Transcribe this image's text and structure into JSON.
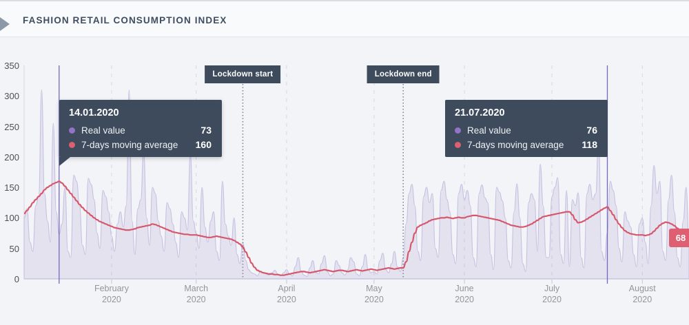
{
  "header": {
    "title": "FASHION RETAIL CONSUMPTION INDEX"
  },
  "tooltips": [
    {
      "date": "14.01.2020",
      "day": 12,
      "rows": [
        {
          "label": "Real value",
          "value": "73",
          "dot_color": "#9173c8"
        },
        {
          "label": "7-days moving average",
          "value": "160",
          "dot_color": "#dd5f72"
        }
      ]
    },
    {
      "date": "21.07.2020",
      "day": 200,
      "rows": [
        {
          "label": "Real value",
          "value": "76",
          "dot_color": "#9173c8"
        },
        {
          "label": "7-days moving average",
          "value": "118",
          "dot_color": "#dd5f72"
        }
      ]
    }
  ],
  "badge": {
    "value": "68"
  },
  "colors": {
    "marker_line": "#7366c2",
    "lockdown_line": "#7b8591",
    "grid_dashed": "#d6d6df",
    "axis": "#d4d4dd",
    "tooltip_bg": "#3e4b5c",
    "badge_bg": "#de5f72"
  },
  "chart_data": {
    "type": "line",
    "title": "Fashion Retail Consumption Index",
    "x_unit": "daily, day 0 = 02.01.2020",
    "ylim": [
      0,
      350
    ],
    "y_ticks": [
      0,
      50,
      100,
      150,
      200,
      250,
      300,
      350
    ],
    "grid": "vertical-dashed-at-month-starts",
    "legend_position": "in-tooltips",
    "months": [
      {
        "name": "February",
        "year": "2020",
        "day": 30
      },
      {
        "name": "March",
        "year": "2020",
        "day": 59
      },
      {
        "name": "April",
        "year": "2020",
        "day": 90
      },
      {
        "name": "May",
        "year": "2020",
        "day": 120
      },
      {
        "name": "June",
        "year": "2020",
        "day": 151
      },
      {
        "name": "July",
        "year": "2020",
        "day": 181
      },
      {
        "name": "August",
        "year": "2020",
        "day": 212
      }
    ],
    "annotations": [
      {
        "label": "Lockdown start",
        "day": 75
      },
      {
        "label": "Lockdown end",
        "day": 130
      }
    ],
    "series": [
      {
        "name": "Real value",
        "type": "area",
        "stroke": "#c7c0e2",
        "fill": "rgba(150,135,200,0.16)",
        "values": [
          100,
          115,
          60,
          45,
          120,
          135,
          310,
          140,
          95,
          60,
          255,
          110,
          73,
          90,
          150,
          45,
          35,
          170,
          160,
          120,
          55,
          40,
          165,
          155,
          130,
          75,
          50,
          145,
          135,
          110,
          70,
          45,
          90,
          110,
          85,
          120,
          310,
          95,
          40,
          115,
          130,
          210,
          100,
          55,
          150,
          140,
          95,
          70,
          45,
          125,
          115,
          90,
          60,
          35,
          110,
          100,
          80,
          205,
          95,
          75,
          50,
          150,
          85,
          60,
          95,
          110,
          45,
          30,
          160,
          90,
          70,
          55,
          100,
          40,
          25,
          60,
          30,
          15,
          10,
          8,
          5,
          12,
          10,
          8,
          6,
          10,
          14,
          8,
          5,
          10,
          15,
          8,
          5,
          20,
          35,
          12,
          6,
          4,
          18,
          30,
          10,
          8,
          25,
          38,
          12,
          5,
          8,
          30,
          22,
          10,
          6,
          15,
          35,
          28,
          8,
          5,
          20,
          40,
          15,
          10,
          12,
          8,
          30,
          42,
          15,
          10,
          25,
          45,
          20,
          12,
          35,
          90,
          140,
          155,
          120,
          45,
          30,
          135,
          150,
          125,
          140,
          50,
          35,
          145,
          160,
          130,
          110,
          40,
          25,
          140,
          155,
          130,
          145,
          120,
          35,
          20,
          140,
          154,
          133,
          125,
          40,
          15,
          150,
          142,
          128,
          100,
          30,
          18,
          110,
          156,
          100,
          25,
          12,
          125,
          140,
          130,
          45,
          188,
          120,
          35,
          35,
          135,
          150,
          166,
          40,
          25,
          145,
          20,
          130,
          120,
          141,
          35,
          18,
          140,
          155,
          130,
          140,
          230,
          45,
          30,
          76,
          160,
          145,
          120,
          50,
          28,
          110,
          95,
          85,
          40,
          20,
          90,
          100,
          60,
          25,
          120,
          186,
          140,
          160,
          45,
          30,
          130,
          170,
          110,
          35,
          20,
          95,
          150,
          60
        ]
      },
      {
        "name": "7-days moving average",
        "type": "line",
        "stroke": "#d6576b",
        "values": [
          107,
          112,
          118,
          125,
          130,
          135,
          140,
          146,
          150,
          153,
          156,
          158,
          160,
          157,
          152,
          146,
          140,
          134,
          128,
          122,
          117,
          112,
          108,
          104,
          100,
          97,
          94,
          92,
          90,
          88,
          86,
          84,
          83,
          82,
          81,
          80,
          80,
          81,
          82,
          84,
          85,
          86,
          87,
          88,
          90,
          89,
          87,
          85,
          83,
          81,
          79,
          77,
          76,
          75,
          74,
          73,
          73,
          72,
          72,
          72,
          71,
          70,
          69,
          68,
          68,
          69,
          70,
          69,
          68,
          67,
          66,
          65,
          63,
          60,
          57,
          52,
          44,
          35,
          26,
          19,
          14,
          12,
          10,
          9,
          8,
          8,
          7,
          7,
          6,
          6,
          7,
          8,
          9,
          10,
          11,
          12,
          12,
          11,
          10,
          11,
          12,
          13,
          14,
          15,
          14,
          13,
          12,
          13,
          14,
          14,
          13,
          12,
          13,
          14,
          15,
          14,
          13,
          14,
          15,
          16,
          15,
          14,
          15,
          16,
          17,
          18,
          17,
          16,
          17,
          18,
          18,
          28,
          45,
          60,
          75,
          85,
          88,
          90,
          92,
          95,
          97,
          98,
          99,
          100,
          100,
          101,
          100,
          99,
          100,
          101,
          100,
          100,
          102,
          103,
          104,
          104,
          103,
          102,
          101,
          100,
          99,
          98,
          97,
          96,
          94,
          92,
          90,
          88,
          87,
          86,
          85,
          85,
          86,
          88,
          90,
          93,
          96,
          99,
          102,
          103,
          104,
          105,
          106,
          107,
          108,
          109,
          110,
          110,
          105,
          97,
          92,
          93,
          95,
          98,
          101,
          104,
          107,
          110,
          113,
          116,
          118,
          112,
          105,
          97,
          90,
          84,
          79,
          76,
          74,
          73,
          72,
          72,
          72,
          71,
          72,
          74,
          78,
          83,
          88,
          91,
          93,
          92,
          90,
          87,
          83,
          79,
          75,
          71,
          68
        ]
      }
    ]
  }
}
